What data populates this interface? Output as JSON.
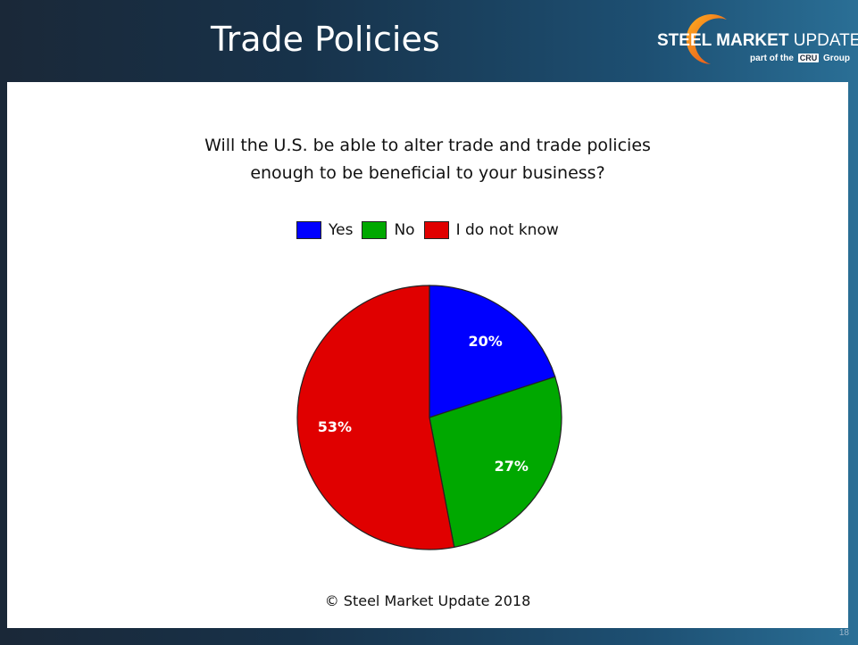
{
  "header": {
    "title": "Trade Policies",
    "logo": {
      "name_bold": "STEEL MARKET",
      "name_rest": "UPDATE",
      "sub_prefix": "part of the",
      "sub_box": "CRU",
      "sub_suffix": "Group",
      "icon": "orange-swoosh-icon"
    }
  },
  "chart_data": {
    "type": "pie",
    "title": "Will the U.S. be able to alter trade and trade policies enough to be beneficial to your business?",
    "title_lines": [
      "Will the U.S. be able to alter trade and trade policies",
      "enough to be beneficial to your business?"
    ],
    "legend_position": "top",
    "categories": [
      "Yes",
      "No",
      "I do not know"
    ],
    "values": [
      20,
      27,
      53
    ],
    "labels": [
      "20%",
      "27%",
      "53%"
    ],
    "colors": [
      "#0000ff",
      "#00a800",
      "#e00000"
    ],
    "start_angle_deg": 0,
    "direction": "clockwise"
  },
  "footer": {
    "copyright": "© Steel Market Update 2018",
    "slide_number": "18"
  }
}
